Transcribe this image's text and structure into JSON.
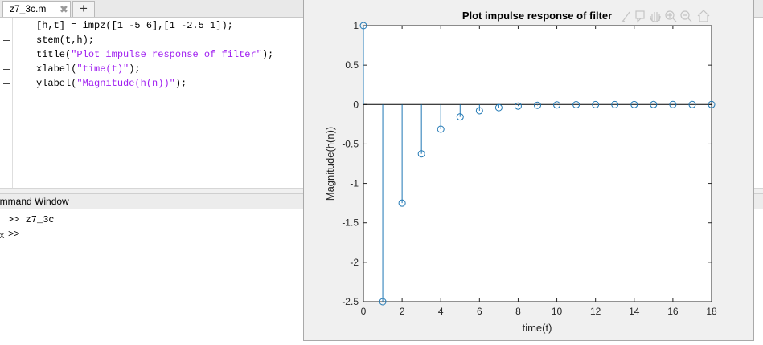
{
  "editor": {
    "tab_label": "z7_3c.m",
    "tab_close": "✖",
    "add_tab": "+",
    "lines": [
      {
        "code": "[h,t] = impz([1 -5 6],[1 -2.5 1]);"
      },
      {
        "pre": "stem(t,h);"
      },
      {
        "pre": "title(",
        "str": "\"Plot impulse response of filter\"",
        "post": ");"
      },
      {
        "pre": "xlabel(",
        "str": "\"time(t)\"",
        "post": ");"
      },
      {
        "pre": "ylabel(",
        "str": "\"Magnitude(h(n))\"",
        "post": ");"
      }
    ]
  },
  "command_window": {
    "title": "ommand Window",
    "history": [
      ">> z7_3c",
      ">>"
    ],
    "fx": "fx"
  },
  "figure": {
    "toolbar_icons": [
      "brush-icon",
      "data-tip-icon",
      "pan-icon",
      "zoom-in-icon",
      "zoom-out-icon",
      "home-icon"
    ]
  },
  "chart_data": {
    "type": "stem",
    "title": "Plot impulse response of filter",
    "xlabel": "time(t)",
    "ylabel": "Magnitude(h(n))",
    "xlim": [
      0,
      18
    ],
    "ylim": [
      -2.5,
      1
    ],
    "xticks": [
      0,
      2,
      4,
      6,
      8,
      10,
      12,
      14,
      16,
      18
    ],
    "yticks": [
      1,
      0.5,
      0,
      -0.5,
      -1,
      -1.5,
      -2,
      -2.5
    ],
    "x": [
      0,
      1,
      2,
      3,
      4,
      5,
      6,
      7,
      8,
      9,
      10,
      11,
      12,
      13,
      14,
      15,
      16,
      17,
      18
    ],
    "values": [
      1,
      -2.5,
      -1.25,
      -0.625,
      -0.3125,
      -0.1563,
      -0.0781,
      -0.0391,
      -0.0195,
      -0.0098,
      -0.0049,
      -0.0024,
      -0.0012,
      -0.0006,
      -0.0003,
      -0.0002,
      -0.0001,
      0,
      0
    ],
    "color": "#1f77b4",
    "grid": false
  }
}
